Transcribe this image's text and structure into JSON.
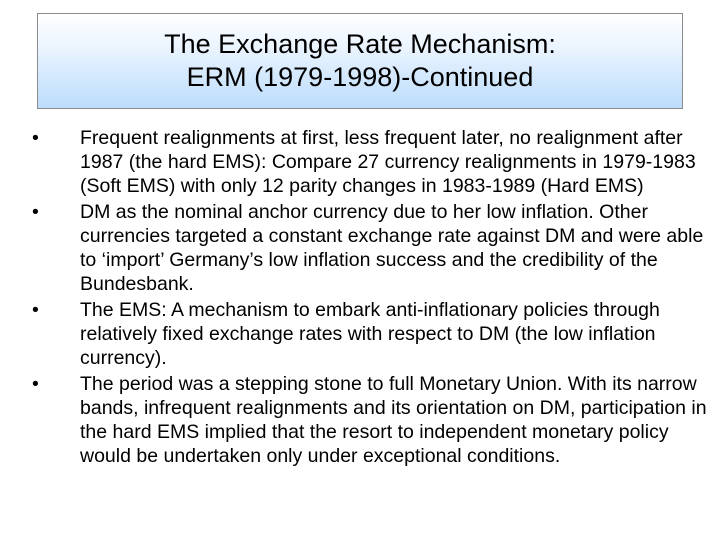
{
  "slide": {
    "title_line1": "The Exchange Rate Mechanism:",
    "title_line2": "ERM (1979-1998)-Continued",
    "bullet_symbol": "•",
    "bullets": [
      "Frequent realignments at first, less frequent later, no realignment after 1987 (the hard EMS): Compare 27 currency realignments in 1979-1983 (Soft EMS) with only 12 parity changes in 1983-1989 (Hard EMS)",
      "DM as the nominal anchor currency due to her low inflation. Other currencies targeted a constant exchange rate against DM and were able to ‘import’ Germany’s low inflation success and the credibility of the Bundesbank.",
      "The EMS: A mechanism to embark anti-inflationary policies through relatively fixed exchange rates with respect to DM (the low inflation currency).",
      "The period was a stepping stone to full Monetary Union. With its narrow bands, infrequent realignments and its orientation on DM, participation in the hard EMS implied that the resort to independent monetary policy would be undertaken only under exceptional conditions."
    ]
  },
  "colors": {
    "title_gradient_top": "#ffffff",
    "title_gradient_bottom": "#bcdcfb",
    "title_border": "#8c8c8c",
    "text": "#000000"
  }
}
